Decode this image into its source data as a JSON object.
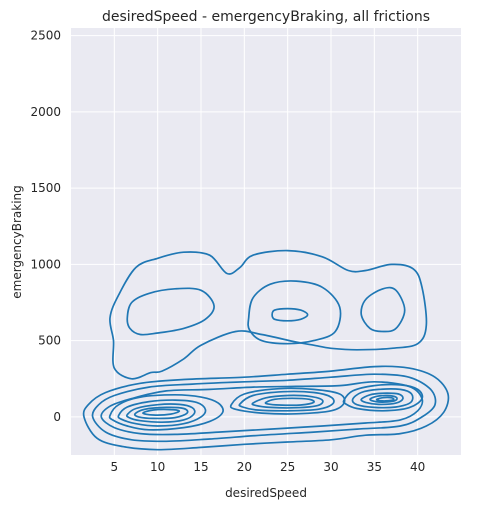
{
  "chart_data": {
    "type": "kde-contour",
    "title": "desiredSpeed - emergencyBraking, all frictions",
    "xlabel": "desiredSpeed",
    "ylabel": "emergencyBraking",
    "xlim": [
      0,
      45
    ],
    "ylim": [
      -250,
      2550
    ],
    "xticks": [
      5,
      10,
      15,
      20,
      25,
      30,
      35,
      40
    ],
    "yticks": [
      0,
      500,
      1000,
      1500,
      2000,
      2500
    ],
    "grid": true,
    "colors": {
      "background": "#eaeaf2",
      "grid": "#ffffff",
      "line": "#1f77b4"
    },
    "contours": [
      {
        "name": "outer-upper-envelope",
        "points": [
          [
            9.2,
            290
          ],
          [
            7,
            250
          ],
          [
            5,
            320
          ],
          [
            4.9,
            500
          ],
          [
            4.5,
            650
          ],
          [
            5.5,
            800
          ],
          [
            7.5,
            980
          ],
          [
            10,
            1040
          ],
          [
            13,
            1080
          ],
          [
            16,
            1060
          ],
          [
            18,
            940
          ],
          [
            19.5,
            980
          ],
          [
            21,
            1060
          ],
          [
            25,
            1090
          ],
          [
            29,
            1050
          ],
          [
            32,
            960
          ],
          [
            34,
            960
          ],
          [
            37,
            1000
          ],
          [
            39.5,
            970
          ],
          [
            40.5,
            850
          ],
          [
            41,
            600
          ],
          [
            40,
            480
          ],
          [
            37,
            450
          ],
          [
            33,
            440
          ],
          [
            30,
            450
          ],
          [
            28,
            470
          ],
          [
            26,
            490
          ],
          [
            22,
            540
          ],
          [
            19,
            560
          ],
          [
            15,
            470
          ],
          [
            13,
            380
          ],
          [
            10.5,
            300
          ],
          [
            9.2,
            290
          ]
        ]
      },
      {
        "name": "upper-left-ring",
        "points": [
          [
            6.5,
            650
          ],
          [
            7,
            750
          ],
          [
            9,
            810
          ],
          [
            12,
            840
          ],
          [
            15,
            830
          ],
          [
            16.5,
            730
          ],
          [
            15.5,
            640
          ],
          [
            13,
            580
          ],
          [
            10,
            550
          ],
          [
            8,
            540
          ],
          [
            6.8,
            580
          ],
          [
            6.5,
            650
          ]
        ]
      },
      {
        "name": "upper-middle-ring",
        "points": [
          [
            20.5,
            650
          ],
          [
            21,
            780
          ],
          [
            23,
            870
          ],
          [
            26,
            890
          ],
          [
            29,
            850
          ],
          [
            31,
            720
          ],
          [
            30.5,
            560
          ],
          [
            28,
            500
          ],
          [
            25,
            480
          ],
          [
            22,
            500
          ],
          [
            20.6,
            570
          ],
          [
            20.5,
            650
          ]
        ]
      },
      {
        "name": "upper-middle-inner",
        "points": [
          [
            23.2,
            670
          ],
          [
            23.5,
            700
          ],
          [
            25,
            710
          ],
          [
            26.5,
            700
          ],
          [
            27.3,
            670
          ],
          [
            26.5,
            640
          ],
          [
            25,
            630
          ],
          [
            23.5,
            640
          ],
          [
            23.2,
            670
          ]
        ]
      },
      {
        "name": "upper-right-ring",
        "points": [
          [
            33.5,
            670
          ],
          [
            34,
            770
          ],
          [
            36,
            840
          ],
          [
            37.5,
            830
          ],
          [
            38.5,
            700
          ],
          [
            37.5,
            580
          ],
          [
            36,
            560
          ],
          [
            34.5,
            580
          ],
          [
            33.5,
            670
          ]
        ]
      },
      {
        "name": "lower-band-1",
        "points": [
          [
            1.5,
            0
          ],
          [
            2,
            80
          ],
          [
            4,
            160
          ],
          [
            8,
            220
          ],
          [
            13,
            245
          ],
          [
            20,
            260
          ],
          [
            25,
            280
          ],
          [
            30,
            300
          ],
          [
            35,
            330
          ],
          [
            39,
            320
          ],
          [
            42,
            260
          ],
          [
            43.5,
            150
          ],
          [
            43,
            30
          ],
          [
            41,
            -60
          ],
          [
            38,
            -110
          ],
          [
            34,
            -120
          ],
          [
            30,
            -150
          ],
          [
            25,
            -165
          ],
          [
            20,
            -180
          ],
          [
            15,
            -200
          ],
          [
            10,
            -215
          ],
          [
            6,
            -195
          ],
          [
            3,
            -140
          ],
          [
            1.5,
            0
          ]
        ]
      },
      {
        "name": "lower-band-2",
        "points": [
          [
            2.5,
            0
          ],
          [
            3.2,
            80
          ],
          [
            5,
            140
          ],
          [
            9,
            195
          ],
          [
            14,
            215
          ],
          [
            20,
            230
          ],
          [
            25,
            240
          ],
          [
            30,
            260
          ],
          [
            35,
            280
          ],
          [
            39,
            260
          ],
          [
            41.5,
            180
          ],
          [
            42,
            80
          ],
          [
            40.5,
            0
          ],
          [
            38,
            -60
          ],
          [
            33,
            -80
          ],
          [
            28,
            -100
          ],
          [
            22,
            -120
          ],
          [
            16,
            -145
          ],
          [
            11,
            -160
          ],
          [
            7,
            -150
          ],
          [
            4,
            -100
          ],
          [
            2.5,
            0
          ]
        ]
      },
      {
        "name": "lower-band-3",
        "points": [
          [
            3.5,
            0
          ],
          [
            4.5,
            70
          ],
          [
            7,
            120
          ],
          [
            11,
            170
          ],
          [
            16,
            180
          ],
          [
            21,
            195
          ],
          [
            26,
            200
          ],
          [
            31,
            205
          ],
          [
            35,
            230
          ],
          [
            39,
            200
          ],
          [
            40.5,
            120
          ],
          [
            40,
            40
          ],
          [
            38,
            -20
          ],
          [
            34,
            -40
          ],
          [
            29,
            -60
          ],
          [
            23,
            -80
          ],
          [
            17,
            -100
          ],
          [
            12,
            -115
          ],
          [
            8,
            -110
          ],
          [
            5,
            -70
          ],
          [
            3.5,
            0
          ]
        ]
      },
      {
        "name": "left-ring-1",
        "points": [
          [
            4.5,
            10
          ],
          [
            5.5,
            80
          ],
          [
            8,
            130
          ],
          [
            12,
            145
          ],
          [
            15,
            130
          ],
          [
            17,
            90
          ],
          [
            17.5,
            30
          ],
          [
            16,
            -30
          ],
          [
            13,
            -70
          ],
          [
            9,
            -85
          ],
          [
            6.5,
            -60
          ],
          [
            4.8,
            -20
          ],
          [
            4.5,
            10
          ]
        ]
      },
      {
        "name": "left-ring-2",
        "points": [
          [
            5.5,
            10
          ],
          [
            6.5,
            65
          ],
          [
            9,
            100
          ],
          [
            12,
            110
          ],
          [
            14.5,
            95
          ],
          [
            15.5,
            50
          ],
          [
            15,
            0
          ],
          [
            13,
            -45
          ],
          [
            10,
            -60
          ],
          [
            7.5,
            -45
          ],
          [
            5.8,
            -15
          ],
          [
            5.5,
            10
          ]
        ]
      },
      {
        "name": "left-ring-3",
        "points": [
          [
            6.5,
            15
          ],
          [
            7.5,
            55
          ],
          [
            10,
            80
          ],
          [
            12.5,
            82
          ],
          [
            14,
            60
          ],
          [
            14.2,
            20
          ],
          [
            13,
            -20
          ],
          [
            10.5,
            -35
          ],
          [
            8,
            -25
          ],
          [
            6.7,
            -5
          ],
          [
            6.5,
            15
          ]
        ]
      },
      {
        "name": "left-ring-4",
        "points": [
          [
            7.4,
            20
          ],
          [
            8.5,
            50
          ],
          [
            11,
            62
          ],
          [
            13,
            55
          ],
          [
            13.4,
            25
          ],
          [
            12,
            -5
          ],
          [
            9.5,
            -10
          ],
          [
            7.8,
            0
          ],
          [
            7.4,
            20
          ]
        ]
      },
      {
        "name": "left-ring-5",
        "points": [
          [
            8.3,
            25
          ],
          [
            9.5,
            45
          ],
          [
            11.5,
            48
          ],
          [
            12.5,
            38
          ],
          [
            11.5,
            18
          ],
          [
            9.5,
            12
          ],
          [
            8.3,
            25
          ]
        ]
      },
      {
        "name": "middle-ring-1",
        "points": [
          [
            18.5,
            80
          ],
          [
            20,
            150
          ],
          [
            24,
            185
          ],
          [
            28,
            180
          ],
          [
            31,
            150
          ],
          [
            31.5,
            90
          ],
          [
            30,
            40
          ],
          [
            26,
            20
          ],
          [
            22,
            25
          ],
          [
            19,
            50
          ],
          [
            18.5,
            80
          ]
        ]
      },
      {
        "name": "middle-ring-2",
        "points": [
          [
            19.5,
            85
          ],
          [
            21,
            140
          ],
          [
            24.5,
            165
          ],
          [
            28,
            160
          ],
          [
            30,
            130
          ],
          [
            30.2,
            85
          ],
          [
            28.5,
            50
          ],
          [
            25,
            40
          ],
          [
            21.5,
            45
          ],
          [
            19.8,
            65
          ],
          [
            19.5,
            85
          ]
        ]
      },
      {
        "name": "middle-ring-3",
        "points": [
          [
            21,
            90
          ],
          [
            22.5,
            125
          ],
          [
            25,
            140
          ],
          [
            27.5,
            135
          ],
          [
            29,
            110
          ],
          [
            28.5,
            75
          ],
          [
            26,
            60
          ],
          [
            23,
            62
          ],
          [
            21.3,
            75
          ],
          [
            21,
            90
          ]
        ]
      },
      {
        "name": "middle-ring-4",
        "points": [
          [
            22.5,
            95
          ],
          [
            23.5,
            115
          ],
          [
            25.5,
            122
          ],
          [
            27.5,
            115
          ],
          [
            28,
            95
          ],
          [
            26.5,
            78
          ],
          [
            24,
            78
          ],
          [
            22.7,
            85
          ],
          [
            22.5,
            95
          ]
        ]
      },
      {
        "name": "right-ring-1",
        "points": [
          [
            31.5,
            110
          ],
          [
            32.5,
            170
          ],
          [
            35,
            205
          ],
          [
            38,
            210
          ],
          [
            40,
            180
          ],
          [
            40.5,
            120
          ],
          [
            39,
            60
          ],
          [
            36,
            40
          ],
          [
            33,
            55
          ],
          [
            31.7,
            85
          ],
          [
            31.5,
            110
          ]
        ]
      },
      {
        "name": "right-ring-2",
        "points": [
          [
            32.5,
            115
          ],
          [
            33.5,
            160
          ],
          [
            35.5,
            180
          ],
          [
            38,
            180
          ],
          [
            39.3,
            150
          ],
          [
            39.2,
            95
          ],
          [
            37.5,
            65
          ],
          [
            35,
            62
          ],
          [
            33,
            80
          ],
          [
            32.5,
            115
          ]
        ]
      },
      {
        "name": "right-ring-3",
        "points": [
          [
            33.5,
            115
          ],
          [
            34.5,
            145
          ],
          [
            36,
            155
          ],
          [
            37.8,
            150
          ],
          [
            38.3,
            120
          ],
          [
            37.5,
            90
          ],
          [
            35.5,
            82
          ],
          [
            34,
            95
          ],
          [
            33.5,
            115
          ]
        ]
      },
      {
        "name": "right-ring-4",
        "points": [
          [
            34.5,
            115
          ],
          [
            35.3,
            135
          ],
          [
            36.5,
            140
          ],
          [
            37.5,
            130
          ],
          [
            37.5,
            110
          ],
          [
            36.5,
            98
          ],
          [
            35.2,
            100
          ],
          [
            34.5,
            115
          ]
        ]
      },
      {
        "name": "right-ring-5",
        "points": [
          [
            35.3,
            115
          ],
          [
            36,
            126
          ],
          [
            37,
            125
          ],
          [
            37.2,
            112
          ],
          [
            36.3,
            105
          ],
          [
            35.5,
            108
          ],
          [
            35.3,
            115
          ]
        ]
      }
    ]
  }
}
